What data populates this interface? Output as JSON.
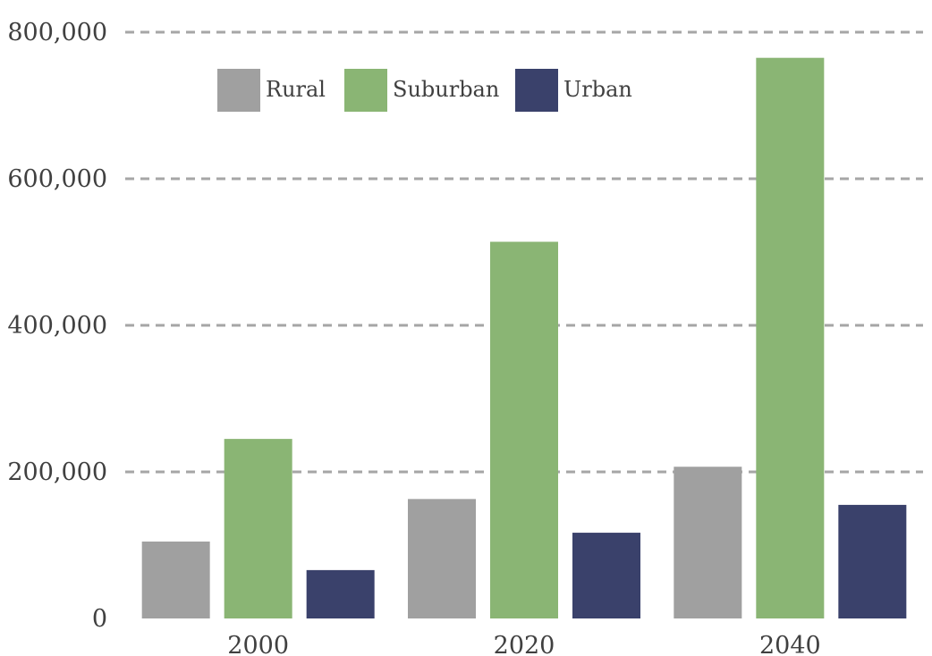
{
  "chart_data": {
    "type": "bar",
    "categories": [
      "2000",
      "2020",
      "2040"
    ],
    "series": [
      {
        "name": "Rural",
        "color": "#a0a0a0",
        "values": [
          105000,
          163000,
          207000
        ]
      },
      {
        "name": "Suburban",
        "color": "#8ab574",
        "values": [
          245000,
          514000,
          765000
        ]
      },
      {
        "name": "Urban",
        "color": "#3a416b",
        "values": [
          66000,
          117000,
          155000
        ]
      }
    ],
    "ylim": [
      0,
      800000
    ],
    "y_ticks": [
      {
        "value": 0,
        "label": "0"
      },
      {
        "value": 200000,
        "label": "200,000"
      },
      {
        "value": 400000,
        "label": "400,000"
      },
      {
        "value": 600000,
        "label": "600,000"
      },
      {
        "value": 800000,
        "label": "800,000"
      }
    ],
    "grid": "dashed horizontal",
    "legend": "top",
    "title": "",
    "xlabel": "",
    "ylabel": ""
  }
}
